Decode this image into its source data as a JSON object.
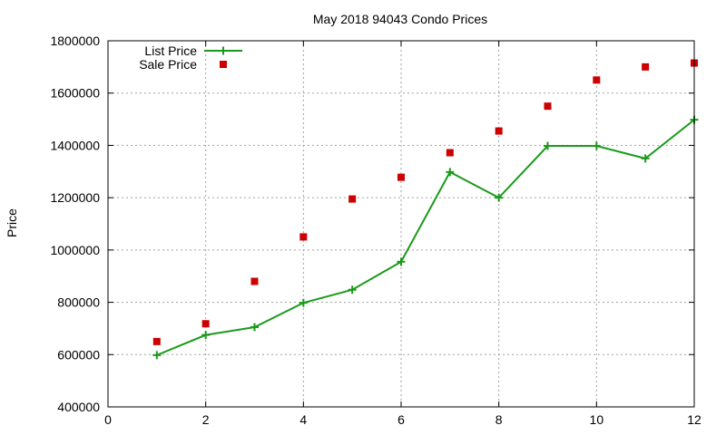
{
  "chart_data": {
    "type": "line",
    "title": "May 2018 94043 Condo Prices",
    "xlabel": "",
    "ylabel": "Price",
    "xlim": [
      0,
      12
    ],
    "ylim": [
      400000,
      1800000
    ],
    "x_ticks": [
      "0",
      "2",
      "4",
      "6",
      "8",
      "10",
      "12"
    ],
    "y_ticks": [
      "400000",
      "600000",
      "800000",
      "1000000",
      "1200000",
      "1400000",
      "1600000",
      "1800000"
    ],
    "grid": true,
    "legend_position": "top-left",
    "series": [
      {
        "name": "List Price",
        "style": "line+cross",
        "color": "#1a9a1a",
        "x": [
          1,
          2,
          3,
          4,
          5,
          6,
          7,
          8,
          9,
          10,
          11,
          12
        ],
        "y": [
          598000,
          675000,
          705000,
          798000,
          848000,
          955000,
          1298000,
          1200000,
          1398000,
          1398000,
          1350000,
          1498000
        ]
      },
      {
        "name": "Sale Price",
        "style": "square-markers",
        "color": "#cc0000",
        "x": [
          1,
          2,
          3,
          4,
          5,
          6,
          7,
          8,
          9,
          10,
          11,
          12
        ],
        "y": [
          650000,
          718000,
          880000,
          1050000,
          1195000,
          1278000,
          1372000,
          1455000,
          1550000,
          1650000,
          1700000,
          1715000
        ]
      }
    ]
  }
}
